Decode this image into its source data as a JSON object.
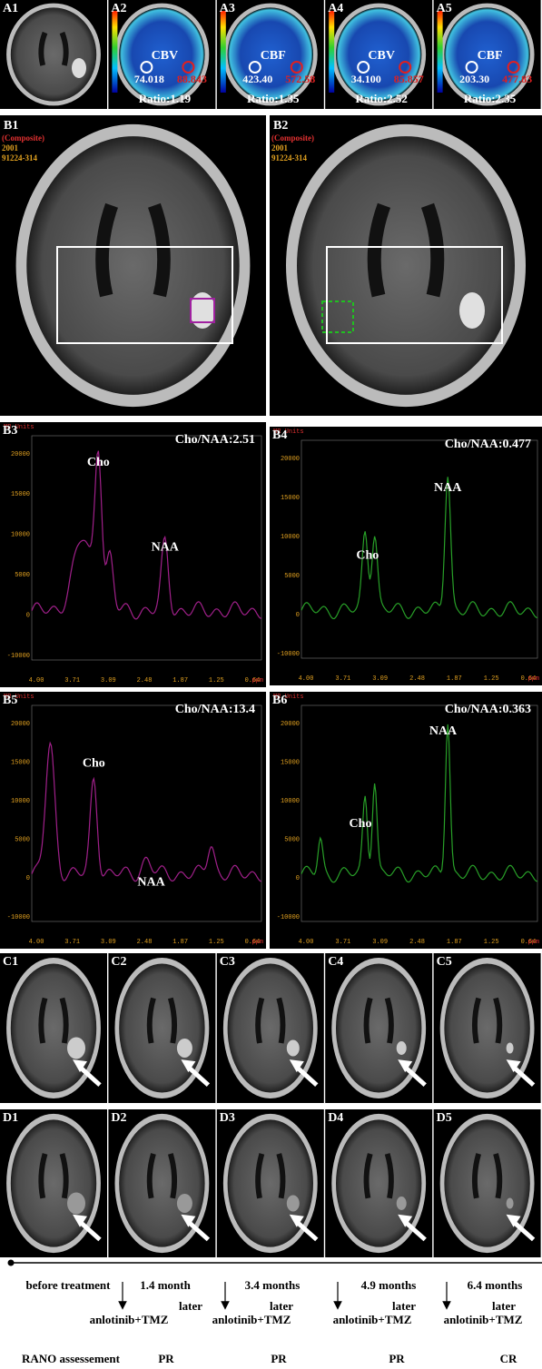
{
  "panels_a": [
    {
      "label": "A1"
    },
    {
      "label": "A2",
      "map": "CBV",
      "left": "74.018",
      "right": "88.843",
      "ratio": "Ratio:1.19"
    },
    {
      "label": "A3",
      "map": "CBF",
      "left": "423.40",
      "right": "572.58",
      "ratio": "Ratio:1.35"
    },
    {
      "label": "A4",
      "map": "CBV",
      "left": "34.100",
      "right": "85.857",
      "ratio": "Ratio:2.52"
    },
    {
      "label": "A5",
      "map": "CBF",
      "left": "203.30",
      "right": "477.83",
      "ratio": "Ratio:2.35"
    }
  ],
  "panels_b": [
    {
      "label": "B1",
      "lines": [
        "(Composite)",
        "2001",
        "91224-314"
      ]
    },
    {
      "label": "B2",
      "lines": [
        "(Composite)",
        "2001",
        "91224-314"
      ]
    }
  ],
  "spectra_axis": {
    "unit": "MR Units",
    "x_labels": [
      "4.00",
      "3.71",
      "3.09",
      "2.48",
      "1.87",
      "1.25",
      "0.64"
    ],
    "x_unit": "ppm",
    "y_labels": [
      "20000",
      "15000",
      "10000",
      "5000",
      "0",
      "-10000"
    ]
  },
  "spectra": [
    {
      "label": "B3",
      "ratio": "Cho/NAA:2.51",
      "cho": "Cho",
      "naa": "NAA"
    },
    {
      "label": "B4",
      "ratio": "Cho/NAA:0.477",
      "cho": "Cho",
      "naa": "NAA"
    },
    {
      "label": "B5",
      "ratio": "Cho/NAA:13.4",
      "cho": "Cho",
      "naa": "NAA"
    },
    {
      "label": "B6",
      "ratio": "Cho/NAA:0.363",
      "cho": "Cho",
      "naa": "NAA"
    }
  ],
  "panels_c": [
    "C1",
    "C2",
    "C3",
    "C4",
    "C5"
  ],
  "panels_d": [
    "D1",
    "D2",
    "D3",
    "D4",
    "D5"
  ],
  "timeline": {
    "start": "before treatment",
    "times": [
      [
        "1.4 month",
        "later"
      ],
      [
        "3.4 months",
        "later"
      ],
      [
        "4.9 months",
        "later"
      ],
      [
        "6.4 months",
        "later"
      ]
    ],
    "treatments": [
      "anlotinib+TMZ",
      "anlotinib+TMZ",
      "anlotinib+TMZ",
      "anlotinib+TMZ"
    ],
    "rano_label": "RANO assessement",
    "rano": [
      "PR",
      "PR",
      "PR",
      "CR"
    ]
  }
}
